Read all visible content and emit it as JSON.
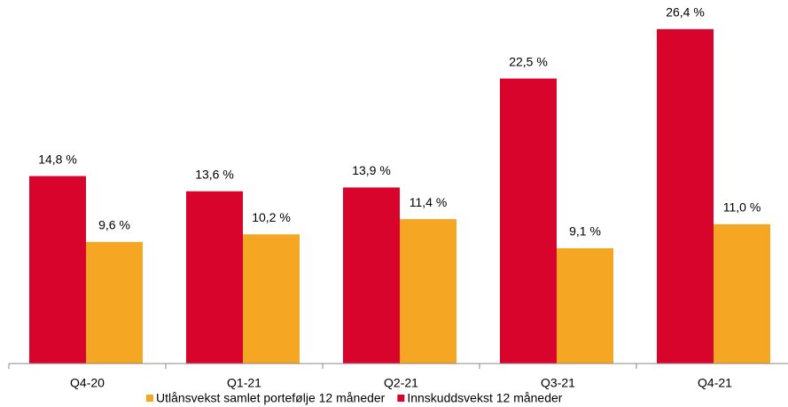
{
  "chart_data": {
    "type": "bar",
    "categories": [
      "Q4-20",
      "Q1-21",
      "Q2-21",
      "Q3-21",
      "Q4-21"
    ],
    "series": [
      {
        "name": "Utlånsvekst samlet portefølje 12 måneder",
        "color": "#f5a623",
        "values": [
          9.6,
          10.2,
          11.4,
          9.1,
          11.0
        ],
        "value_labels": [
          "9,6 %",
          "10,2 %",
          "11,4 %",
          "9,1 %",
          "11,0 %"
        ]
      },
      {
        "name": "Innskuddsvekst 12 måneder",
        "color": "#d9042b",
        "values": [
          14.8,
          13.6,
          13.9,
          22.5,
          26.4
        ],
        "value_labels": [
          "14,8 %",
          "13,6 %",
          "13,9 %",
          "22,5 %",
          "26,4 %"
        ]
      }
    ],
    "ylim": [
      0,
      28
    ],
    "legend": "bottom"
  }
}
